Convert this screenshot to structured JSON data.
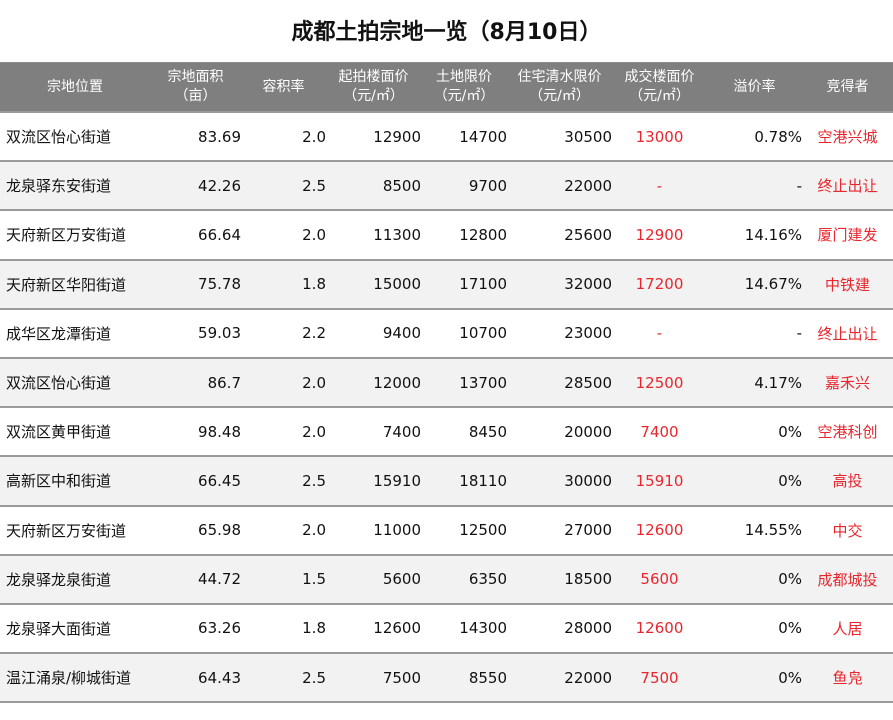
{
  "title": "成都土拍宗地一览（8月10日）",
  "colors": {
    "header_bg": "#7f7f7f",
    "accent_red": "#e8262d",
    "stripe": "#f2f2f2"
  },
  "columns": [
    {
      "l1": "宗地位置",
      "l2": ""
    },
    {
      "l1": "宗地面积",
      "l2": "（亩）"
    },
    {
      "l1": "容积率",
      "l2": ""
    },
    {
      "l1": "起拍楼面价",
      "l2": "（元/㎡）"
    },
    {
      "l1": "土地限价",
      "l2": "（元/㎡）"
    },
    {
      "l1": "住宅清水限价",
      "l2": "（元/㎡）"
    },
    {
      "l1": "成交楼面价",
      "l2": "（元/㎡）"
    },
    {
      "l1": "溢价率",
      "l2": ""
    },
    {
      "l1": "竞得者",
      "l2": ""
    }
  ],
  "rows": [
    {
      "loc": "双流区怡心街道",
      "area": "83.69",
      "far": "2.0",
      "start": "12900",
      "land_cap": "14700",
      "res_cap": "30500",
      "deal": "13000",
      "premium": "0.78%",
      "winner": "空港兴城"
    },
    {
      "loc": "龙泉驿东安街道",
      "area": "42.26",
      "far": "2.5",
      "start": "8500",
      "land_cap": "9700",
      "res_cap": "22000",
      "deal": "-",
      "premium": "-",
      "winner": "终止出让"
    },
    {
      "loc": "天府新区万安街道",
      "area": "66.64",
      "far": "2.0",
      "start": "11300",
      "land_cap": "12800",
      "res_cap": "25600",
      "deal": "12900",
      "premium": "14.16%",
      "winner": "厦门建发"
    },
    {
      "loc": "天府新区华阳街道",
      "area": "75.78",
      "far": "1.8",
      "start": "15000",
      "land_cap": "17100",
      "res_cap": "32000",
      "deal": "17200",
      "premium": "14.67%",
      "winner": "中铁建"
    },
    {
      "loc": "成华区龙潭街道",
      "area": "59.03",
      "far": "2.2",
      "start": "9400",
      "land_cap": "10700",
      "res_cap": "23000",
      "deal": "-",
      "premium": "-",
      "winner": "终止出让"
    },
    {
      "loc": "双流区怡心街道",
      "area": "86.7",
      "far": "2.0",
      "start": "12000",
      "land_cap": "13700",
      "res_cap": "28500",
      "deal": "12500",
      "premium": "4.17%",
      "winner": "嘉禾兴"
    },
    {
      "loc": "双流区黄甲街道",
      "area": "98.48",
      "far": "2.0",
      "start": "7400",
      "land_cap": "8450",
      "res_cap": "20000",
      "deal": "7400",
      "premium": "0%",
      "winner": "空港科创"
    },
    {
      "loc": "高新区中和街道",
      "area": "66.45",
      "far": "2.5",
      "start": "15910",
      "land_cap": "18110",
      "res_cap": "30000",
      "deal": "15910",
      "premium": "0%",
      "winner": "高投"
    },
    {
      "loc": "天府新区万安街道",
      "area": "65.98",
      "far": "2.0",
      "start": "11000",
      "land_cap": "12500",
      "res_cap": "27000",
      "deal": "12600",
      "premium": "14.55%",
      "winner": "中交"
    },
    {
      "loc": "龙泉驿龙泉街道",
      "area": "44.72",
      "far": "1.5",
      "start": "5600",
      "land_cap": "6350",
      "res_cap": "18500",
      "deal": "5600",
      "premium": "0%",
      "winner": "成都城投"
    },
    {
      "loc": "龙泉驿大面街道",
      "area": "63.26",
      "far": "1.8",
      "start": "12600",
      "land_cap": "14300",
      "res_cap": "28000",
      "deal": "12600",
      "premium": "0%",
      "winner": "人居"
    },
    {
      "loc": "温江涌泉/柳城街道",
      "area": "64.43",
      "far": "2.5",
      "start": "7500",
      "land_cap": "8550",
      "res_cap": "22000",
      "deal": "7500",
      "premium": "0%",
      "winner": "鱼凫"
    }
  ]
}
